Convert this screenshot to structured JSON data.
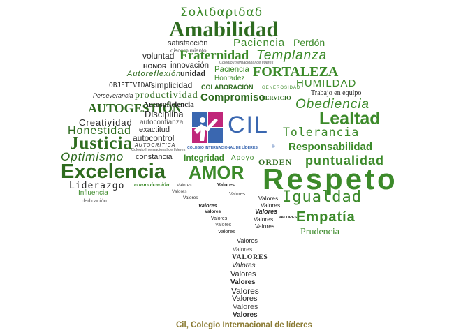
{
  "canopy": {
    "solidaridad": "Σολιδαριδαδ",
    "amabilidad": "Amabilidad",
    "satisfaccion": "satisfacción",
    "discernimiento": "discernimiento",
    "paciencia_top": "Paciencia",
    "perdon": "Perdón",
    "voluntad": "voluntad",
    "fraternidad": "Fraternidad",
    "templanza": "Templanza",
    "cil_small": "Colegio Internacional de líderes",
    "honor": "HONOR",
    "innovacion": "innovación",
    "paciencia_small": "Paciencia",
    "autorreflexion": "Autoreflexión",
    "unidad": "unidad",
    "honradez": "Honradez",
    "fortaleza": "FORTALEZA",
    "objetividad": "OBJETIVIDAD",
    "simplicidad": "simplicidad",
    "humildad": "HUMILDAD",
    "colaboracion": "COLABORACIÓN",
    "generosidad": "GENEROSIDAD",
    "perseverancia": "Perseverancia",
    "productividad": "productividad",
    "trabajo_equipo": "Trabajo en equipo",
    "compromiso": "Compromiso",
    "servicio": "SERVICIO",
    "autogestion": "AUTOGESTIÓN",
    "autosuficiencia": "Autosuficiencia",
    "obediencia": "Obediencia",
    "disciplina": "Disciplina",
    "creatividad": "Creatividad",
    "autoconfianza": "autoconfianza",
    "lealtad": "Lealtad",
    "honestidad": "Honestidad",
    "exactitud": "exactitud",
    "tolerancia": "Tolerancia",
    "autocontrol": "autocontrol",
    "justicia": "Justicia",
    "autocritica": "AUTOCRÍTICA",
    "responsabilidad": "Responsabilidad",
    "cil_small2": "Colegio Internacional de líderes",
    "optimismo": "Optimismo",
    "constancia": "constancia",
    "integridad": "Integridad",
    "apoyo": "Apoyo",
    "orden": "ORDEN",
    "puntualidad": "puntualidad",
    "excelencia": "Excelencia",
    "amor": "AMOR",
    "respeto": "Respeto",
    "liderazgo": "Liderazgo",
    "comunicacion": "comunicación",
    "influencia": "Influencia",
    "igualdad": "Igualdad",
    "dedicacion": "dedicación",
    "empatia": "Empatía",
    "prudencia": "Prudencia"
  },
  "trunk": {
    "valores_bold": "Valores",
    "valores_caps": "VALORES",
    "valores": "Valores",
    "valores_small": "Valores"
  },
  "logo": {
    "acronym": "CIL",
    "fullname": "COLEGIO INTERNACIONAL DE LÍDERES",
    "reg": "®"
  },
  "caption": "Cil, Colegio Internacional de líderes",
  "colors": {
    "dark_green": "#2e6b1f",
    "green": "#3c8a2a",
    "light_green": "#58a83c",
    "logo_blue": "#3a67b0",
    "logo_magenta": "#c0277a",
    "caption_gold": "#8a7a32"
  }
}
